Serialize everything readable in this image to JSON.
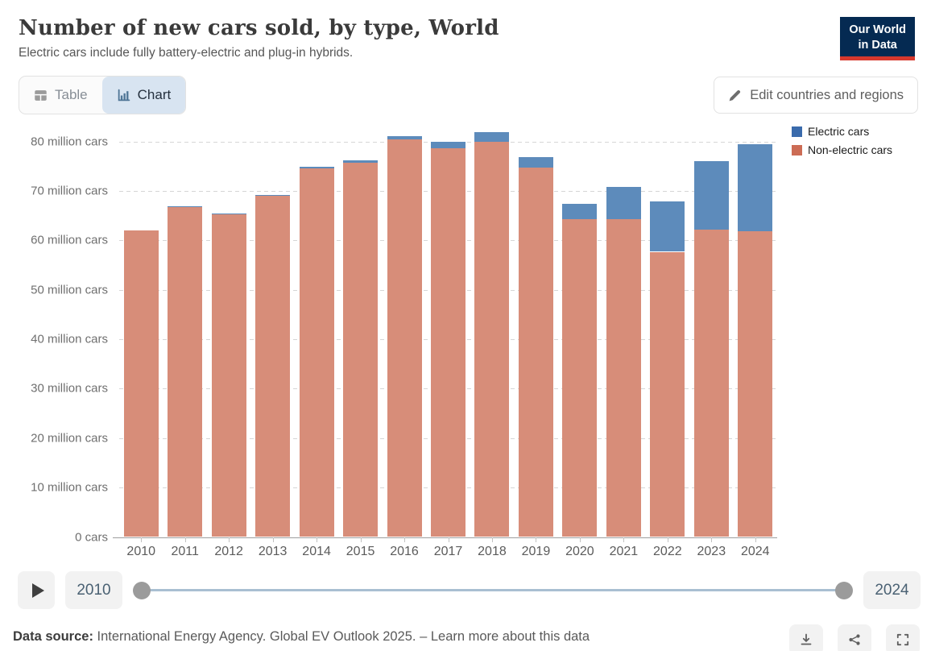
{
  "header": {
    "title": "Number of new cars sold, by type, World",
    "subtitle": "Electric cars include fully battery-electric and plug-in hybrids.",
    "logo_line1": "Our World",
    "logo_line2": "in Data",
    "logo_bg": "#052a52",
    "logo_accent": "#d7382d"
  },
  "tabs": [
    {
      "label": "Table",
      "selected": false
    },
    {
      "label": "Chart",
      "selected": true
    }
  ],
  "edit_button": {
    "label": "Edit countries and regions"
  },
  "legend": [
    {
      "label": "Electric cars",
      "color": "#3a6bac"
    },
    {
      "label": "Non-electric cars",
      "color": "#cc6c55"
    }
  ],
  "chart_data": {
    "type": "bar",
    "stacked": true,
    "title": "Number of new cars sold, by type, World",
    "categories": [
      "2010",
      "2011",
      "2012",
      "2013",
      "2014",
      "2015",
      "2016",
      "2017",
      "2018",
      "2019",
      "2020",
      "2021",
      "2022",
      "2023",
      "2024"
    ],
    "series": [
      {
        "name": "Electric cars",
        "color": "#3a6bac",
        "bar_color": "#5d8bbb",
        "values": [
          0.01,
          0.06,
          0.13,
          0.2,
          0.32,
          0.55,
          0.75,
          1.2,
          2.0,
          2.2,
          3.1,
          6.6,
          10.2,
          13.8,
          17.5
        ]
      },
      {
        "name": "Non-electric cars",
        "color": "#cc6c55",
        "bar_color": "#d78d79",
        "values": [
          62.0,
          66.9,
          65.3,
          69.0,
          74.6,
          75.7,
          80.4,
          78.7,
          79.9,
          74.7,
          64.3,
          64.3,
          57.7,
          62.2,
          61.9
        ]
      }
    ],
    "unit": "million cars",
    "ylim": [
      0,
      83.4
    ],
    "ytick_values": [
      0,
      10,
      20,
      30,
      40,
      50,
      60,
      70,
      80
    ],
    "ytick_labels": [
      "0 cars",
      "10 million cars",
      "20 million cars",
      "30 million cars",
      "40 million cars",
      "50 million cars",
      "60 million cars",
      "70 million cars",
      "80 million cars"
    ],
    "grid": true,
    "legend_position": "top-right"
  },
  "timeline": {
    "start": "2010",
    "end": "2024"
  },
  "footer": {
    "datasource_label": "Data source:",
    "datasource_text": " International Energy Agency. Global EV Outlook 2025. ",
    "separator": "– ",
    "learn_more": "Learn more about this data"
  },
  "action_buttons": [
    {
      "name": "download-icon"
    },
    {
      "name": "share-icon"
    },
    {
      "name": "fullscreen-icon"
    }
  ]
}
